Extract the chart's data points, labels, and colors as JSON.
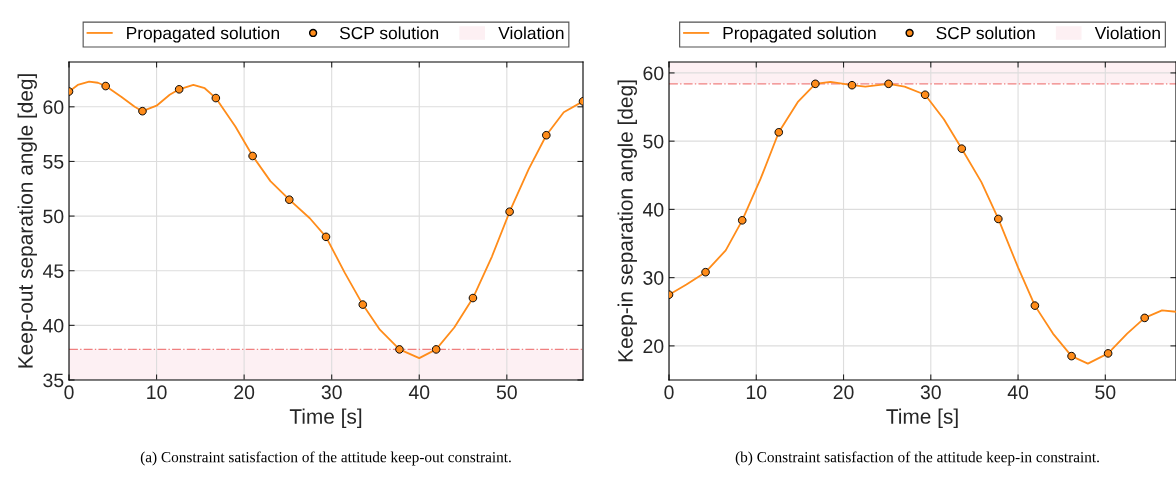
{
  "chart_data": [
    {
      "type": "line",
      "xlabel": "Time [s]",
      "ylabel": "Keep-out separation angle [deg]",
      "xlim": [
        0,
        58.7
      ],
      "ylim": [
        35,
        64.1
      ],
      "xticks": [
        0,
        10,
        20,
        30,
        40,
        50
      ],
      "yticks": [
        35,
        40,
        45,
        50,
        55,
        60
      ],
      "grid": true,
      "legend": "top",
      "series": [
        {
          "name": "Propagated solution",
          "color": "#ff8c1a",
          "marker": "none",
          "x": [
            0,
            1,
            2.3,
            3.3,
            4.19,
            6,
            7.5,
            8.39,
            10,
            11.5,
            12.58,
            14.2,
            15.5,
            16.77,
            19,
            20.97,
            23,
            25.16,
            27.5,
            29.35,
            31.5,
            33.55,
            35.5,
            37.74,
            40,
            41.93,
            44,
            46.13,
            48.3,
            50.32,
            52.5,
            54.51,
            56.5,
            58.7
          ],
          "values": [
            61.4,
            62.0,
            62.3,
            62.2,
            61.9,
            60.9,
            60.0,
            59.6,
            60.1,
            61.1,
            61.6,
            62.0,
            61.7,
            60.8,
            58.2,
            55.5,
            53.2,
            51.5,
            49.8,
            48.1,
            44.8,
            41.9,
            39.6,
            37.8,
            37.0,
            37.8,
            39.8,
            42.5,
            46.3,
            50.4,
            54.3,
            57.4,
            59.5,
            60.5
          ]
        },
        {
          "name": "SCP solution",
          "type": "scatter",
          "color": "#ff8c1a",
          "marker": "circle",
          "x": [
            0,
            4.19,
            8.39,
            12.58,
            16.77,
            20.97,
            25.16,
            29.35,
            33.55,
            37.74,
            41.93,
            46.13,
            50.32,
            54.51,
            58.7
          ],
          "values": [
            61.4,
            61.9,
            59.6,
            61.6,
            60.8,
            55.5,
            51.5,
            48.1,
            41.9,
            37.8,
            37.8,
            42.5,
            50.4,
            57.4,
            60.5
          ]
        }
      ],
      "ref_lines": [
        {
          "axis": "y",
          "value": 37.8,
          "color": "#f08080"
        }
      ],
      "bands": [
        {
          "axis": "y",
          "from": 35,
          "to": 37.8,
          "label": "Violation",
          "color": "#fdf0f3"
        }
      ],
      "annotations": [
        "(a) Constraint satisfaction of the attitude keep-out constraint."
      ]
    },
    {
      "type": "line",
      "xlabel": "Time [s]",
      "ylabel": "Keep-in separation angle [deg]",
      "xlim": [
        0,
        58.1
      ],
      "ylim": [
        15,
        61.6
      ],
      "xticks": [
        0,
        10,
        20,
        30,
        40,
        50
      ],
      "yticks": [
        20,
        30,
        40,
        50,
        60
      ],
      "grid": true,
      "legend": "top",
      "series": [
        {
          "name": "Propagated solution",
          "color": "#ff8c1a",
          "marker": "none",
          "x": [
            0,
            2,
            4.19,
            6.5,
            8.39,
            10.5,
            12.58,
            14.8,
            16.77,
            18.5,
            20.97,
            22.5,
            25.16,
            27,
            29.35,
            31.5,
            33.55,
            35.8,
            37.74,
            40,
            41.93,
            44,
            46.13,
            48,
            50.32,
            52.5,
            54.51,
            56.5,
            58.1
          ],
          "values": [
            27.5,
            29.0,
            30.8,
            34.0,
            38.4,
            44.5,
            51.3,
            55.8,
            58.4,
            58.7,
            58.2,
            58.0,
            58.4,
            58.0,
            56.8,
            53.2,
            48.9,
            44.0,
            38.6,
            31.5,
            25.9,
            21.8,
            18.5,
            17.4,
            18.9,
            21.8,
            24.1,
            25.2,
            25.0
          ]
        },
        {
          "name": "SCP solution",
          "type": "scatter",
          "color": "#ff8c1a",
          "marker": "circle",
          "x": [
            0,
            4.19,
            8.39,
            12.58,
            16.77,
            20.97,
            25.16,
            29.35,
            33.55,
            37.74,
            41.93,
            46.13,
            50.32,
            54.51
          ],
          "values": [
            27.5,
            30.8,
            38.4,
            51.3,
            58.4,
            58.2,
            58.4,
            56.8,
            48.9,
            38.6,
            25.9,
            18.5,
            18.9,
            24.1
          ]
        }
      ],
      "ref_lines": [
        {
          "axis": "y",
          "value": 58.4,
          "color": "#f08080"
        }
      ],
      "bands": [
        {
          "axis": "y",
          "from": 58.4,
          "to": 61.6,
          "label": "Violation",
          "color": "#fdf0f3"
        }
      ],
      "annotations": [
        "(b) Constraint satisfaction of the attitude keep-in constraint."
      ]
    }
  ]
}
